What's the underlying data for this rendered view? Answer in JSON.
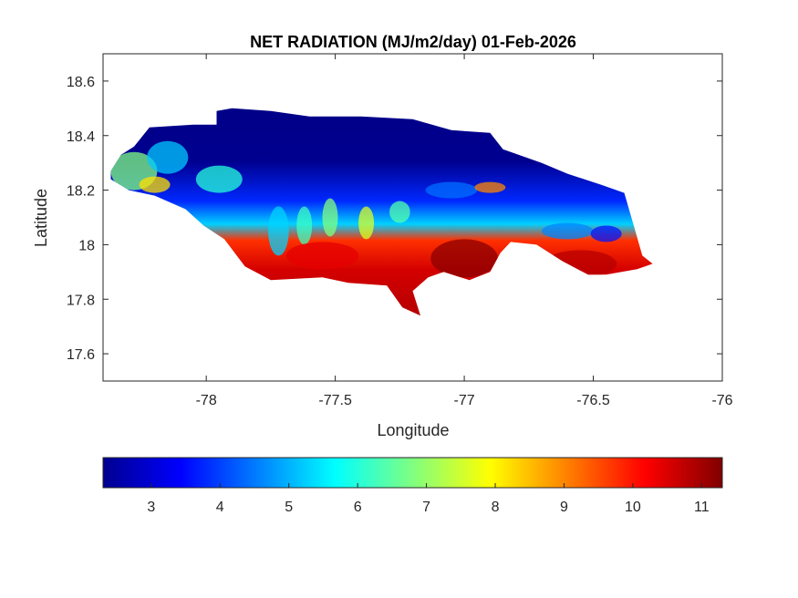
{
  "chart_data": {
    "type": "heatmap",
    "title": "NET RADIATION (MJ/m2/day) 01-Feb-2026",
    "xlabel": "Longitude",
    "ylabel": "Latitude",
    "xlim": [
      -78.4,
      -76
    ],
    "ylim": [
      17.5,
      18.7
    ],
    "xticks": [
      -78,
      -77.5,
      -77,
      -76.5,
      -76
    ],
    "xtick_labels": [
      "-78",
      "-77.5",
      "-77",
      "-76.5",
      "-76"
    ],
    "yticks": [
      17.6,
      17.8,
      18,
      18.2,
      18.4,
      18.6
    ],
    "ytick_labels": [
      "17.6",
      "17.8",
      "18",
      "18.2",
      "18.4",
      "18.6"
    ],
    "colormap": "jet",
    "colorbar": {
      "orientation": "horizontal",
      "position": "bottom",
      "range": [
        2.3,
        11.3
      ],
      "ticks": [
        3,
        4,
        5,
        6,
        7,
        8,
        9,
        10,
        11
      ],
      "tick_labels": [
        "3",
        "4",
        "5",
        "6",
        "7",
        "8",
        "9",
        "10",
        "11"
      ]
    },
    "region_outline": [
      [
        -78.37,
        18.27
      ],
      [
        -78.33,
        18.33
      ],
      [
        -78.28,
        18.36
      ],
      [
        -78.22,
        18.43
      ],
      [
        -78.05,
        18.44
      ],
      [
        -77.96,
        18.44
      ],
      [
        -77.96,
        18.49
      ],
      [
        -77.9,
        18.5
      ],
      [
        -77.75,
        18.49
      ],
      [
        -77.6,
        18.47
      ],
      [
        -77.4,
        18.47
      ],
      [
        -77.2,
        18.46
      ],
      [
        -77.05,
        18.42
      ],
      [
        -76.9,
        18.41
      ],
      [
        -76.85,
        18.35
      ],
      [
        -76.7,
        18.3
      ],
      [
        -76.6,
        18.26
      ],
      [
        -76.47,
        18.22
      ],
      [
        -76.38,
        18.19
      ],
      [
        -76.34,
        18.06
      ],
      [
        -76.31,
        17.96
      ],
      [
        -76.27,
        17.93
      ],
      [
        -76.33,
        17.91
      ],
      [
        -76.45,
        17.89
      ],
      [
        -76.52,
        17.89
      ],
      [
        -76.62,
        17.94
      ],
      [
        -76.72,
        18.0
      ],
      [
        -76.82,
        18.01
      ],
      [
        -76.86,
        17.97
      ],
      [
        -76.9,
        17.9
      ],
      [
        -76.98,
        17.87
      ],
      [
        -77.08,
        17.9
      ],
      [
        -77.14,
        17.88
      ],
      [
        -77.2,
        17.83
      ],
      [
        -77.17,
        17.74
      ],
      [
        -77.24,
        17.77
      ],
      [
        -77.3,
        17.85
      ],
      [
        -77.45,
        17.86
      ],
      [
        -77.55,
        17.88
      ],
      [
        -77.75,
        17.87
      ],
      [
        -77.85,
        17.92
      ],
      [
        -77.93,
        18.02
      ],
      [
        -78.01,
        18.07
      ],
      [
        -78.08,
        18.13
      ],
      [
        -78.2,
        18.18
      ],
      [
        -78.3,
        18.2
      ],
      [
        -78.37,
        18.24
      ]
    ],
    "field_description": [
      {
        "area": "north coast and central-north interior",
        "approx_value": 2.5
      },
      {
        "area": "western tip (near -78.3)",
        "approx_value": 6.5
      },
      {
        "area": "transition band near 18.2 latitude",
        "approx_value": 5.0
      },
      {
        "area": "south-central and south coast",
        "approx_value": 10.5
      },
      {
        "area": "south-east (near -77.0, 17.95)",
        "approx_value": 11.0
      }
    ]
  }
}
